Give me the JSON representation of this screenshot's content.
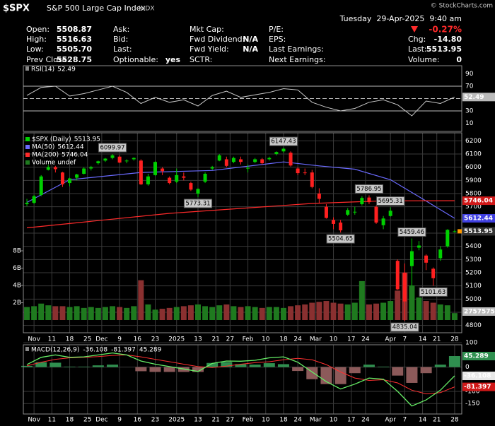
{
  "header": {
    "symbol": "$SPX",
    "name": "S&P 500 Large Cap Index",
    "exchange": "INDX",
    "copyright": "© StockCharts.com",
    "datetime": "Tuesday  29-Apr-2025  9:40 am",
    "columns": [
      [
        {
          "label": "Open:",
          "value": "5508.87"
        },
        {
          "label": "High:",
          "value": "5516.63"
        },
        {
          "label": "Low:",
          "value": "5505.70"
        },
        {
          "label": "Prev Close:",
          "value": "5528.75"
        }
      ],
      [
        {
          "label": "Ask:"
        },
        {
          "label": "Bid:"
        },
        {
          "label": "Last:"
        },
        {
          "label": "Optionable:",
          "value": "yes"
        }
      ],
      [
        {
          "label": "Mkt Cap:"
        },
        {
          "label": "Fwd Dividend:",
          "value": "N/A"
        },
        {
          "label": "Fwd Yield:",
          "value": "N/A"
        },
        {
          "label": "SCTR:"
        }
      ],
      [
        {
          "label": "P/E:"
        },
        {
          "label": "EPS:"
        },
        {
          "label": "Last Earnings:"
        },
        {
          "label": "Next Earnings:"
        }
      ],
      [
        {
          "value": "-0.27%"
        },
        {
          "label": "Chg:",
          "value": "-14.80"
        },
        {
          "label": "Last:",
          "value": "5513.95"
        },
        {
          "label": "Volume:",
          "value": "0"
        }
      ]
    ]
  },
  "chart_data": [
    {
      "type": "line",
      "title": "RSI(14)",
      "color": "#c8c8c8",
      "xlim": [
        -1,
        122
      ],
      "ylim": [
        0,
        100
      ],
      "yticks": [
        90,
        70,
        50,
        30,
        10
      ],
      "levels": [
        70,
        50,
        30
      ],
      "x": [
        0,
        4,
        8,
        12,
        16,
        20,
        24,
        28,
        32,
        36,
        40,
        44,
        48,
        52,
        56,
        60,
        64,
        68,
        72,
        76,
        80,
        84,
        88,
        92,
        96,
        100,
        104,
        108,
        112,
        116,
        120
      ],
      "values": [
        55,
        68,
        70,
        54,
        58,
        64,
        70,
        60,
        42,
        52,
        44,
        48,
        38,
        55,
        62,
        52,
        56,
        60,
        66,
        64,
        44,
        36,
        30,
        34,
        44,
        48,
        40,
        22,
        46,
        42,
        52.49
      ]
    },
    {
      "type": "candlestick",
      "xlim": [
        -1,
        122
      ],
      "ylim": [
        4750,
        6250
      ],
      "yticks": [
        6200,
        6100,
        6000,
        5900,
        5800,
        5700,
        5600,
        5500,
        5400,
        5300,
        5200,
        5100,
        5000,
        4900,
        4800
      ],
      "xticks": [
        {
          "value": 2,
          "label": "Nov"
        },
        {
          "value": 7,
          "label": "11"
        },
        {
          "value": 12,
          "label": "18"
        },
        {
          "value": 17,
          "label": "25"
        },
        {
          "value": 21,
          "label": "Dec"
        },
        {
          "value": 26,
          "label": "9"
        },
        {
          "value": 31,
          "label": "16"
        },
        {
          "value": 36,
          "label": "23"
        },
        {
          "value": 42,
          "label": "2025"
        },
        {
          "value": 48,
          "label": "13"
        },
        {
          "value": 53,
          "label": "21"
        },
        {
          "value": 57,
          "label": "27"
        },
        {
          "value": 62,
          "label": "Feb"
        },
        {
          "value": 67,
          "label": "10"
        },
        {
          "value": 72,
          "label": "18"
        },
        {
          "value": 76,
          "label": "24"
        },
        {
          "value": 81,
          "label": "Mar"
        },
        {
          "value": 86,
          "label": "10"
        },
        {
          "value": 91,
          "label": "17"
        },
        {
          "value": 95,
          "label": "24"
        },
        {
          "value": 102,
          "label": "Apr"
        },
        {
          "value": 106,
          "label": "7"
        },
        {
          "value": 111,
          "label": "14"
        },
        {
          "value": 115,
          "label": "21"
        },
        {
          "value": 120,
          "label": "28"
        }
      ],
      "series": [
        {
          "name": "$SPX (Daily)",
          "color_up": "#00d000",
          "color_down": "#ff2020",
          "x": [
            0,
            2,
            4,
            6,
            8,
            10,
            12,
            14,
            16,
            18,
            20,
            22,
            24,
            26,
            28,
            30,
            32,
            34,
            36,
            38,
            40,
            42,
            44,
            46,
            48,
            50,
            52,
            54,
            56,
            58,
            60,
            62,
            64,
            66,
            68,
            70,
            72,
            74,
            76,
            78,
            80,
            82,
            84,
            86,
            88,
            90,
            92,
            94,
            96,
            98,
            100,
            102,
            104,
            106,
            108,
            110,
            112,
            114,
            116,
            118,
            120
          ],
          "open": [
            5720,
            5730,
            5790,
            5980,
            6000,
            5960,
            5880,
            5920,
            5950,
            5990,
            6030,
            6050,
            6070,
            6080,
            6050,
            6060,
            6050,
            5870,
            5940,
            5990,
            5920,
            5890,
            5930,
            5880,
            5800,
            5890,
            5990,
            6050,
            6060,
            6040,
            6060,
            5990,
            6040,
            6060,
            6060,
            6100,
            6120,
            6110,
            5990,
            5960,
            5960,
            5800,
            5700,
            5600,
            5580,
            5640,
            5660,
            5720,
            5770,
            5700,
            5560,
            5630,
            5290,
            5200,
            5250,
            5390,
            5330,
            5230,
            5310,
            5400,
            5510
          ],
          "high": [
            5760,
            5790,
            5940,
            6017,
            6010,
            5965,
            5920,
            5950,
            6000,
            6010,
            6050,
            6070,
            6099.97,
            6090,
            6060,
            6075,
            6060,
            5950,
            6045,
            6000,
            5930,
            5990,
            5960,
            5890,
            5840,
            5960,
            6010,
            6100,
            6080,
            6080,
            6080,
            6020,
            6070,
            6070,
            6080,
            6120,
            6147.43,
            6120,
            6000,
            5990,
            5980,
            5840,
            5720,
            5620,
            5600,
            5690,
            5700,
            5780,
            5786.95,
            5710,
            5630,
            5695.31,
            5300,
            5270,
            5459.46,
            5440,
            5340,
            5240,
            5400,
            5530,
            5525
          ],
          "low": [
            5705,
            5720,
            5780,
            5975,
            5960,
            5850,
            5855,
            5900,
            5945,
            5975,
            6020,
            6040,
            6060,
            6030,
            6030,
            6050,
            5865,
            5860,
            5935,
            5940,
            5870,
            5880,
            5900,
            5820,
            5773.31,
            5880,
            5980,
            6045,
            6000,
            6030,
            6020,
            5960,
            6030,
            6020,
            6050,
            6090,
            6110,
            6005,
            5940,
            5940,
            5840,
            5730,
            5610,
            5530,
            5504.65,
            5630,
            5640,
            5710,
            5720,
            5570,
            5530,
            5625,
            5070,
            4835.04,
            5100,
            5370,
            5220,
            5101.63,
            5290,
            5390,
            5505
          ],
          "close": [
            5730,
            5780,
            5930,
            6000,
            5985,
            5870,
            5915,
            5945,
            5990,
            6000,
            6045,
            6065,
            6090,
            6035,
            6050,
            6070,
            5870,
            5930,
            6040,
            5970,
            5880,
            5940,
            5920,
            5830,
            5835,
            5950,
            6000,
            6090,
            6010,
            6070,
            6040,
            5995,
            6060,
            6030,
            6070,
            6115,
            6140,
            6013,
            5955,
            5955,
            5850,
            5760,
            5615,
            5570,
            5521,
            5675,
            5662,
            5767,
            5735,
            5580,
            5611,
            5670,
            5074,
            4982,
            5363,
            5406,
            5276,
            5158,
            5376,
            5525,
            5513.95
          ]
        },
        {
          "name": "MA(50)",
          "color": "#6a6aff",
          "x": [
            0,
            12,
            32,
            52,
            72,
            82,
            92,
            102,
            111,
            120
          ],
          "values": [
            5733,
            5905,
            5960,
            5975,
            6040,
            6010,
            5985,
            5905,
            5760,
            5612.44
          ]
        },
        {
          "name": "MA(200)",
          "color": "#ff2a2a",
          "x": [
            0,
            40,
            80,
            100,
            120
          ],
          "values": [
            5540,
            5650,
            5725,
            5745,
            5746.04
          ]
        }
      ],
      "volume": {
        "name": "Volume undef",
        "last_label": "2757575",
        "color_up": "#1f7a1f",
        "color_down": "#8a3030",
        "ylim": [
          0,
          8
        ],
        "yticks": [
          {
            "value": 8,
            "label": "8B"
          },
          {
            "value": 6,
            "label": "6B"
          },
          {
            "value": 4,
            "label": "4B"
          },
          {
            "value": 2,
            "label": "2B"
          }
        ],
        "values": [
          1.5,
          1.6,
          1.9,
          1.7,
          1.6,
          1.6,
          1.5,
          1.6,
          1.4,
          1.5,
          1.4,
          1.5,
          1.6,
          1.5,
          1.4,
          1.6,
          4.6,
          1.8,
          1.2,
          1.3,
          1.4,
          1.5,
          1.6,
          1.7,
          1.8,
          1.6,
          1.5,
          1.7,
          1.8,
          1.6,
          1.5,
          1.6,
          1.5,
          1.4,
          1.5,
          1.5,
          1.4,
          1.6,
          1.7,
          1.8,
          2.0,
          2.1,
          2.2,
          2.0,
          1.9,
          1.8,
          2.0,
          4.5,
          1.8,
          1.9,
          2.0,
          2.2,
          3.4,
          5.5,
          4.0,
          2.6,
          2.2,
          2.0,
          1.8,
          1.7,
          0.8
        ]
      }
    },
    {
      "type": "macd",
      "title": "MACD(12,26,9)",
      "xlim": [
        -1,
        122
      ],
      "ylim": [
        -190,
        115
      ],
      "yticks": [
        100,
        0,
        -100,
        -150
      ],
      "xticks": [
        {
          "value": 2,
          "label": "Nov"
        },
        {
          "value": 7,
          "label": "11"
        },
        {
          "value": 12,
          "label": "18"
        },
        {
          "value": 17,
          "label": "25"
        },
        {
          "value": 21,
          "label": "Dec"
        },
        {
          "value": 26,
          "label": "9"
        },
        {
          "value": 31,
          "label": "16"
        },
        {
          "value": 36,
          "label": "23"
        },
        {
          "value": 42,
          "label": "2025"
        },
        {
          "value": 48,
          "label": "13"
        },
        {
          "value": 53,
          "label": "21"
        },
        {
          "value": 57,
          "label": "27"
        },
        {
          "value": 62,
          "label": "Feb"
        },
        {
          "value": 67,
          "label": "10"
        },
        {
          "value": 72,
          "label": "18"
        },
        {
          "value": 76,
          "label": "24"
        },
        {
          "value": 81,
          "label": "Mar"
        },
        {
          "value": 86,
          "label": "10"
        },
        {
          "value": 91,
          "label": "17"
        },
        {
          "value": 95,
          "label": "24"
        },
        {
          "value": 102,
          "label": "Apr"
        },
        {
          "value": 106,
          "label": "7"
        },
        {
          "value": 111,
          "label": "14"
        },
        {
          "value": 115,
          "label": "21"
        },
        {
          "value": 120,
          "label": "28"
        }
      ],
      "x": [
        0,
        4,
        8,
        12,
        16,
        20,
        24,
        28,
        32,
        36,
        40,
        44,
        48,
        52,
        56,
        60,
        64,
        68,
        72,
        76,
        80,
        84,
        88,
        92,
        96,
        100,
        104,
        108,
        112,
        116,
        120
      ],
      "macd": {
        "color": "#66ee66",
        "values": [
          10,
          40,
          50,
          40,
          42,
          50,
          58,
          50,
          25,
          12,
          2,
          -8,
          -18,
          15,
          25,
          24,
          28,
          38,
          42,
          20,
          -20,
          -60,
          -90,
          -70,
          -45,
          -50,
          -100,
          -160,
          -135,
          -95,
          -36.108
        ]
      },
      "signal": {
        "color": "#ff3030",
        "values": [
          5,
          20,
          32,
          38,
          40,
          43,
          48,
          50,
          42,
          32,
          22,
          12,
          2,
          -2,
          4,
          12,
          18,
          22,
          30,
          36,
          30,
          10,
          -20,
          -45,
          -55,
          -52,
          -65,
          -95,
          -110,
          -105,
          -81.397
        ]
      },
      "histogram": {
        "color_up": "#2f8f4f",
        "color_down": "#8c5a5a",
        "values": [
          5,
          20,
          18,
          2,
          2,
          7,
          10,
          0,
          -17,
          -20,
          -20,
          -20,
          -20,
          17,
          21,
          12,
          10,
          16,
          12,
          -16,
          -50,
          -70,
          -70,
          -25,
          10,
          2,
          -35,
          -65,
          -25,
          10,
          45.289
        ]
      }
    }
  ]
}
